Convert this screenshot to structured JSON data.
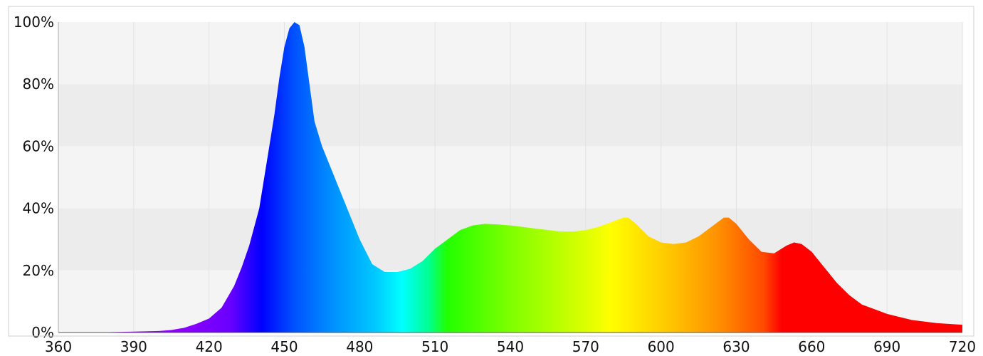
{
  "chart_data": {
    "type": "area",
    "title": "",
    "xlabel": "",
    "ylabel": "",
    "xlim": [
      360,
      720
    ],
    "ylim": [
      0,
      100
    ],
    "x_ticks": [
      360,
      390,
      420,
      450,
      480,
      510,
      540,
      570,
      600,
      630,
      660,
      690,
      720
    ],
    "y_ticks": [
      0,
      20,
      40,
      60,
      80,
      100
    ],
    "x_tick_labels": [
      "360",
      "390",
      "420",
      "450",
      "480",
      "510",
      "540",
      "570",
      "600",
      "630",
      "660",
      "690",
      "720"
    ],
    "y_tick_labels": [
      "0%",
      "20%",
      "40%",
      "60%",
      "80%",
      "100%"
    ],
    "grid": true,
    "fill": "visible-spectrum-gradient",
    "series": [
      {
        "x": [
          380,
          390,
          400,
          405,
          410,
          415,
          420,
          425,
          430,
          433,
          436,
          440,
          443,
          446,
          448,
          450,
          452,
          454,
          456,
          458,
          460,
          462,
          465,
          470,
          475,
          480,
          485,
          490,
          495,
          500,
          505,
          510,
          515,
          520,
          525,
          530,
          535,
          540,
          545,
          550,
          555,
          560,
          565,
          570,
          575,
          580,
          585,
          587,
          590,
          595,
          600,
          605,
          610,
          615,
          620,
          625,
          627,
          630,
          635,
          640,
          645,
          650,
          653,
          656,
          660,
          665,
          670,
          675,
          680,
          685,
          690,
          700,
          710,
          720
        ],
        "values": [
          0.1,
          0.3,
          0.5,
          0.8,
          1.5,
          2.8,
          4.5,
          8,
          15,
          21,
          28,
          40,
          55,
          70,
          82,
          92,
          98,
          100,
          99,
          92,
          80,
          68,
          60,
          50,
          40,
          30,
          22,
          19.5,
          19.5,
          20.5,
          23,
          27,
          30,
          33,
          34.5,
          35,
          34.8,
          34.5,
          34,
          33.5,
          33,
          32.5,
          32.5,
          33,
          34,
          35.5,
          37,
          37,
          35,
          31,
          29,
          28.5,
          29,
          31,
          34,
          37,
          37,
          35,
          30,
          26,
          25.5,
          28,
          29,
          28.5,
          26,
          21,
          16,
          12,
          9,
          7.5,
          6,
          4,
          3,
          2.5
        ]
      }
    ]
  }
}
